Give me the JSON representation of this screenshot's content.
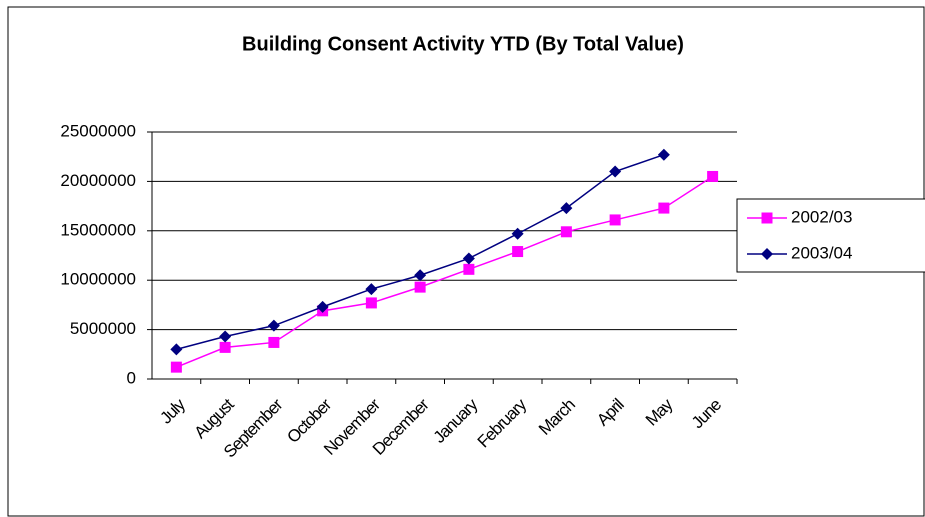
{
  "chart_data": {
    "type": "line",
    "title": "Building Consent Activity YTD (By Total Value)",
    "categories": [
      "July",
      "August",
      "September",
      "October",
      "November",
      "December",
      "January",
      "February",
      "March",
      "April",
      "May",
      "June"
    ],
    "series": [
      {
        "name": "2002/03",
        "color": "#ff00ff",
        "marker": "square",
        "values": [
          1200000,
          3200000,
          3700000,
          6900000,
          7700000,
          9300000,
          11100000,
          12900000,
          14900000,
          16100000,
          17300000,
          20500000
        ]
      },
      {
        "name": "2003/04",
        "color": "#000080",
        "marker": "diamond",
        "values": [
          3000000,
          4300000,
          5400000,
          7300000,
          9100000,
          10500000,
          12200000,
          14700000,
          17300000,
          21000000,
          22700000,
          null
        ]
      }
    ],
    "ylim": [
      0,
      25000000
    ],
    "yticks": [
      0,
      5000000,
      10000000,
      15000000,
      20000000,
      25000000
    ],
    "grid": true,
    "legend": "right"
  }
}
